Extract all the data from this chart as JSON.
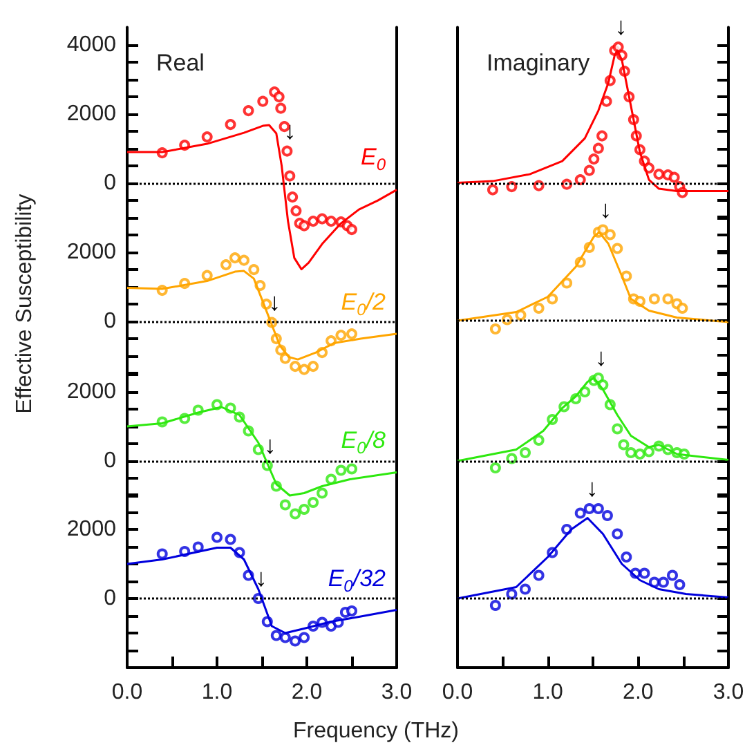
{
  "chart_data": [
    {
      "type": "scatter",
      "title": "Real",
      "grid": false,
      "legend": false,
      "marker": "circle",
      "tick_labels": "y",
      "xlim": [
        0,
        3
      ],
      "ylim": [
        -2500,
        4500
      ],
      "yticks": [
        {
          "value": -2500,
          "label": null
        },
        {
          "value": -2000,
          "label": null
        },
        {
          "value": -1500,
          "label": null
        },
        {
          "value": -1000,
          "label": null
        },
        {
          "value": -500,
          "label": null
        },
        0,
        {
          "value": 500,
          "label": null
        },
        {
          "value": 1000,
          "label": null
        },
        {
          "value": 1500,
          "label": null
        },
        2000,
        {
          "value": 2500,
          "label": null
        },
        {
          "value": 3000,
          "label": null
        },
        {
          "value": 3500,
          "label": null
        },
        4000
      ],
      "ref_lines": [
        {
          "axis": "y",
          "value": 0,
          "color": "#000000",
          "line_style": "dotted"
        }
      ],
      "annotations": [
        {
          "text": "↓",
          "x": 1.78,
          "y": 920
        }
      ],
      "series": [
        {
          "color": "#ff0000",
          "x": [
            0.39,
            0.64,
            0.89,
            1.15,
            1.35,
            1.51,
            1.64,
            1.69,
            1.71,
            1.75,
            1.78,
            1.81,
            1.84,
            1.88,
            1.92,
            1.97,
            2.07,
            2.17,
            2.27,
            2.38,
            2.45,
            2.5
          ],
          "values": [
            870,
            1090,
            1330,
            1690,
            2090,
            2360,
            2630,
            2490,
            2160,
            1630,
            920,
            200,
            -410,
            -810,
            -1170,
            -1240,
            -1110,
            -1040,
            -1110,
            -1130,
            -1240,
            -1350
          ]
        },
        {
          "type": "line",
          "marker": "none",
          "name": "E$_{0}$",
          "color": "#ff0000",
          "x": [
            0,
            0.39,
            0.89,
            1.3,
            1.51,
            1.58,
            1.66,
            1.72,
            1.79,
            1.86,
            1.94,
            2.02,
            2.17,
            2.38,
            2.58,
            2.79,
            3.0
          ],
          "values": [
            890,
            890,
            1130,
            1450,
            1650,
            1670,
            1430,
            490,
            -1110,
            -2170,
            -2500,
            -2310,
            -1770,
            -1170,
            -770,
            -510,
            -200
          ]
        }
      ]
    },
    {
      "type": "scatter",
      "title": "Imaginary",
      "grid": false,
      "legend": false,
      "marker": "circle",
      "tick_labels": false,
      "xlim": [
        0,
        3
      ],
      "ylim": [
        -2500,
        4500
      ],
      "yticks": [
        {
          "value": -2500,
          "label": null
        },
        {
          "value": -2000,
          "label": null
        },
        {
          "value": -1500,
          "label": null
        },
        {
          "value": -1000,
          "label": null
        },
        {
          "value": -500,
          "label": null
        },
        0,
        {
          "value": 500,
          "label": null
        },
        {
          "value": 1000,
          "label": null
        },
        {
          "value": 1500,
          "label": null
        },
        2000,
        {
          "value": 2500,
          "label": null
        },
        {
          "value": 3000,
          "label": null
        },
        {
          "value": 3500,
          "label": null
        },
        4000
      ],
      "ref_lines": [
        {
          "axis": "y",
          "value": 0,
          "color": "#000000",
          "line_style": "dotted"
        }
      ],
      "annotations": [
        {
          "text": "↓",
          "x": 1.78,
          "y": 3930
        }
      ],
      "series": [
        {
          "color": "#ff0000",
          "x": [
            0.39,
            0.6,
            0.9,
            1.21,
            1.36,
            1.46,
            1.51,
            1.56,
            1.6,
            1.65,
            1.69,
            1.74,
            1.78,
            1.82,
            1.85,
            1.9,
            1.95,
            1.98,
            2.02,
            2.07,
            2.12,
            2.23,
            2.33,
            2.4,
            2.46,
            2.49
          ],
          "values": [
            -200,
            -110,
            -80,
            -40,
            90,
            360,
            690,
            1000,
            1360,
            2360,
            2960,
            3830,
            3930,
            3690,
            3230,
            2490,
            1830,
            1360,
            960,
            630,
            430,
            250,
            230,
            160,
            -110,
            -280
          ]
        },
        {
          "type": "line",
          "marker": "none",
          "color": "#ff0000",
          "x": [
            0,
            0.39,
            0.8,
            1.16,
            1.41,
            1.56,
            1.67,
            1.74,
            1.77,
            1.82,
            1.92,
            2.02,
            2.12,
            2.23,
            2.43,
            3.0
          ],
          "values": [
            0,
            50,
            250,
            630,
            1290,
            2090,
            2890,
            3690,
            3830,
            3560,
            2230,
            890,
            90,
            -170,
            -240,
            -240
          ]
        }
      ]
    },
    {
      "type": "scatter",
      "ylabel": "Effective Susceptibility",
      "grid": false,
      "legend": false,
      "marker": "circle",
      "tick_labels": "y",
      "xlim": [
        0,
        3
      ],
      "ylim": [
        -2000,
        3000
      ],
      "yticks": [
        {
          "value": -1500,
          "label": null
        },
        {
          "value": -1000,
          "label": null
        },
        {
          "value": -500,
          "label": null
        },
        0,
        {
          "value": 500,
          "label": null
        },
        {
          "value": 1000,
          "label": null
        },
        {
          "value": 1500,
          "label": null
        },
        2000,
        {
          "value": 2500,
          "label": null
        },
        {
          "value": 3000,
          "label": null
        }
      ],
      "ref_lines": [
        {
          "axis": "y",
          "value": 0,
          "color": "#000000",
          "line_style": "dotted"
        }
      ],
      "annotations": [
        {
          "text": "↓",
          "x": 1.61,
          "y": -40
        }
      ],
      "series": [
        {
          "color": "#ffa500",
          "x": [
            0.39,
            0.64,
            0.89,
            1.1,
            1.2,
            1.3,
            1.41,
            1.48,
            1.55,
            1.61,
            1.66,
            1.71,
            1.76,
            1.87,
            1.97,
            2.07,
            2.17,
            2.27,
            2.38,
            2.5
          ],
          "values": [
            890,
            1090,
            1320,
            1630,
            1830,
            1760,
            1490,
            1030,
            490,
            -40,
            -510,
            -840,
            -1080,
            -1310,
            -1400,
            -1310,
            -910,
            -570,
            -410,
            -370
          ]
        },
        {
          "type": "line",
          "marker": "none",
          "name": "E$_{0}$/2",
          "color": "#ffa500",
          "x": [
            0,
            0.39,
            0.89,
            1.2,
            1.3,
            1.41,
            1.5,
            1.6,
            1.7,
            1.8,
            1.9,
            2.1,
            2.3,
            2.6,
            3.0
          ],
          "values": [
            960,
            930,
            1160,
            1430,
            1450,
            1230,
            630,
            -40,
            -710,
            -1040,
            -1110,
            -910,
            -640,
            -510,
            -370
          ]
        }
      ]
    },
    {
      "type": "scatter",
      "grid": false,
      "legend": false,
      "marker": "circle",
      "tick_labels": false,
      "xlim": [
        0,
        3
      ],
      "ylim": [
        -2000,
        3000
      ],
      "yticks": [
        {
          "value": -1500,
          "label": null
        },
        {
          "value": -1000,
          "label": null
        },
        {
          "value": -500,
          "label": null
        },
        0,
        {
          "value": 500,
          "label": null
        },
        {
          "value": 1000,
          "label": null
        },
        {
          "value": 1500,
          "label": null
        },
        2000,
        {
          "value": 2500,
          "label": null
        },
        {
          "value": 3000,
          "label": null
        }
      ],
      "ref_lines": [
        {
          "axis": "y",
          "value": 0,
          "color": "#000000",
          "line_style": "dotted"
        }
      ],
      "annotations": [
        {
          "text": "↓",
          "x": 1.61,
          "y": 2630
        }
      ],
      "series": [
        {
          "color": "#ffa500",
          "x": [
            0.42,
            0.55,
            0.7,
            0.9,
            1.05,
            1.21,
            1.36,
            1.46,
            1.56,
            1.61,
            1.69,
            1.77,
            1.87,
            1.95,
            2.02,
            2.18,
            2.33,
            2.43,
            2.49
          ],
          "values": [
            -240,
            30,
            160,
            360,
            630,
            1090,
            1690,
            2120,
            2560,
            2630,
            2490,
            2090,
            1290,
            630,
            560,
            630,
            630,
            490,
            360
          ]
        },
        {
          "type": "line",
          "marker": "none",
          "color": "#ffa500",
          "x": [
            0,
            0.65,
            1.0,
            1.31,
            1.51,
            1.57,
            1.67,
            1.82,
            1.92,
            2.12,
            2.43,
            3.0
          ],
          "values": [
            0,
            250,
            690,
            1560,
            2430,
            2560,
            2230,
            1290,
            630,
            290,
            90,
            -40
          ]
        }
      ]
    },
    {
      "type": "scatter",
      "grid": false,
      "legend": false,
      "marker": "circle",
      "tick_labels": "y",
      "xlim": [
        0,
        3
      ],
      "ylim": [
        -2000,
        2500
      ],
      "yticks": [
        {
          "value": -1500,
          "label": null
        },
        {
          "value": -1000,
          "label": null
        },
        {
          "value": -500,
          "label": null
        },
        0,
        {
          "value": 500,
          "label": null
        },
        {
          "value": 1000,
          "label": null
        },
        {
          "value": 1500,
          "label": null
        },
        2000,
        {
          "value": 2500,
          "label": null
        }
      ],
      "ref_lines": [
        {
          "axis": "y",
          "value": 0,
          "color": "#000000",
          "line_style": "dotted"
        }
      ],
      "annotations": [
        {
          "text": "↓",
          "x": 1.56,
          "y": -130
        }
      ],
      "series": [
        {
          "color": "#2ee80f",
          "x": [
            0.39,
            0.64,
            0.79,
            1.0,
            1.15,
            1.25,
            1.35,
            1.46,
            1.56,
            1.66,
            1.76,
            1.87,
            1.97,
            2.07,
            2.17,
            2.27,
            2.38,
            2.5
          ],
          "values": [
            1130,
            1230,
            1470,
            1630,
            1530,
            1270,
            870,
            330,
            -130,
            -730,
            -1270,
            -1530,
            -1400,
            -1200,
            -930,
            -530,
            -270,
            -230
          ]
        },
        {
          "type": "line",
          "marker": "none",
          "name": "E$_{0}$/8",
          "color": "#2ee80f",
          "x": [
            0,
            0.39,
            0.79,
            1.05,
            1.25,
            1.46,
            1.66,
            1.81,
            1.97,
            2.17,
            2.48,
            3.0
          ],
          "values": [
            1000,
            1090,
            1400,
            1560,
            1330,
            530,
            -670,
            -1000,
            -930,
            -730,
            -530,
            -330
          ]
        }
      ]
    },
    {
      "type": "scatter",
      "grid": false,
      "legend": false,
      "marker": "circle",
      "tick_labels": false,
      "xlim": [
        0,
        3
      ],
      "ylim": [
        -2000,
        2500
      ],
      "yticks": [
        {
          "value": -1500,
          "label": null
        },
        {
          "value": -1000,
          "label": null
        },
        {
          "value": -500,
          "label": null
        },
        0,
        {
          "value": 500,
          "label": null
        },
        {
          "value": 1000,
          "label": null
        },
        {
          "value": 1500,
          "label": null
        },
        2000,
        {
          "value": 2500,
          "label": null
        }
      ],
      "ref_lines": [
        {
          "axis": "y",
          "value": 0,
          "color": "#000000",
          "line_style": "dotted"
        }
      ],
      "annotations": [
        {
          "text": "↓",
          "x": 1.56,
          "y": 2400
        }
      ],
      "series": [
        {
          "color": "#2ee80f",
          "x": [
            0.42,
            0.6,
            0.75,
            0.9,
            1.05,
            1.18,
            1.31,
            1.41,
            1.51,
            1.56,
            1.61,
            1.69,
            1.77,
            1.84,
            1.92,
            2.02,
            2.12,
            2.23,
            2.33,
            2.43,
            2.51
          ],
          "values": [
            -200,
            70,
            240,
            600,
            1200,
            1570,
            1800,
            2000,
            2330,
            2400,
            2200,
            1630,
            930,
            470,
            240,
            200,
            270,
            430,
            330,
            240,
            200
          ]
        },
        {
          "type": "line",
          "marker": "none",
          "color": "#2ee80f",
          "x": [
            0,
            0.65,
            0.95,
            1.16,
            1.31,
            1.44,
            1.51,
            1.61,
            1.77,
            1.92,
            2.12,
            2.23,
            2.43,
            3.0
          ],
          "values": [
            0,
            330,
            870,
            1530,
            1870,
            2290,
            2400,
            2070,
            1330,
            730,
            400,
            470,
            200,
            30
          ]
        }
      ]
    },
    {
      "type": "scatter",
      "xlabel": "Frequency (THz)",
      "grid": false,
      "legend": false,
      "marker": "circle",
      "xlim": [
        0,
        3
      ],
      "xticks": [
        {
          "value": 0,
          "label": "0.0"
        },
        {
          "value": 0.5,
          "label": null
        },
        {
          "value": 1,
          "label": "1.0"
        },
        {
          "value": 1.5,
          "label": null
        },
        {
          "value": 2,
          "label": "2.0"
        },
        {
          "value": 2.5,
          "label": null
        },
        {
          "value": 3,
          "label": "3.0"
        }
      ],
      "ylim": [
        -2000,
        3000
      ],
      "yticks": [
        {
          "value": -1500,
          "label": null
        },
        {
          "value": -1000,
          "label": null
        },
        {
          "value": -500,
          "label": null
        },
        0,
        {
          "value": 500,
          "label": null
        },
        {
          "value": 1000,
          "label": null
        },
        {
          "value": 1500,
          "label": null
        },
        2000,
        {
          "value": 2500,
          "label": null
        },
        {
          "value": 3000,
          "label": null
        }
      ],
      "ref_lines": [
        {
          "axis": "y",
          "value": 0,
          "color": "#000000",
          "line_style": "dotted"
        }
      ],
      "annotations": [
        {
          "text": "↓",
          "x": 1.46,
          "y": 0
        }
      ],
      "series": [
        {
          "color": "#0000dd",
          "x": [
            0.39,
            0.64,
            0.79,
            1.0,
            1.15,
            1.25,
            1.35,
            1.46,
            1.56,
            1.66,
            1.76,
            1.87,
            1.97,
            2.07,
            2.17,
            2.27,
            2.35,
            2.43,
            2.5
          ],
          "values": [
            1290,
            1360,
            1490,
            1770,
            1710,
            1330,
            670,
            0,
            -670,
            -1070,
            -1130,
            -1230,
            -1130,
            -800,
            -690,
            -800,
            -690,
            -400,
            -360
          ]
        },
        {
          "type": "line",
          "marker": "none",
          "name": "E$_{0}$/32",
          "color": "#0000dd",
          "x": [
            0,
            0.39,
            1.0,
            1.15,
            1.3,
            1.46,
            1.61,
            1.76,
            1.97,
            2.27,
            2.58,
            3.0
          ],
          "values": [
            1000,
            1130,
            1470,
            1470,
            1130,
            270,
            -800,
            -1000,
            -870,
            -670,
            -530,
            -330
          ]
        }
      ]
    },
    {
      "type": "scatter",
      "grid": false,
      "legend": false,
      "marker": "circle",
      "tick_labels": "x",
      "xlim": [
        0,
        3
      ],
      "xticks": [
        {
          "value": 0,
          "label": "0.0"
        },
        {
          "value": 0.5,
          "label": null
        },
        {
          "value": 1,
          "label": "1.0"
        },
        {
          "value": 1.5,
          "label": null
        },
        {
          "value": 2,
          "label": "2.0"
        },
        {
          "value": 2.5,
          "label": null
        },
        {
          "value": 3,
          "label": "3.0"
        }
      ],
      "ylim": [
        -2000,
        3000
      ],
      "yticks": [
        {
          "value": -1500,
          "label": null
        },
        {
          "value": -1000,
          "label": null
        },
        {
          "value": -500,
          "label": null
        },
        0,
        {
          "value": 500,
          "label": null
        },
        {
          "value": 1000,
          "label": null
        },
        {
          "value": 1500,
          "label": null
        },
        2000,
        {
          "value": 2500,
          "label": null
        },
        {
          "value": 3000,
          "label": null
        }
      ],
      "ref_lines": [
        {
          "axis": "y",
          "value": 0,
          "color": "#000000",
          "line_style": "dotted"
        }
      ],
      "annotations": [
        {
          "text": "↓",
          "x": 1.46,
          "y": 2600
        }
      ],
      "series": [
        {
          "color": "#0000dd",
          "x": [
            0.42,
            0.6,
            0.75,
            0.9,
            1.05,
            1.21,
            1.36,
            1.46,
            1.56,
            1.66,
            1.77,
            1.87,
            1.97,
            2.07,
            2.18,
            2.28,
            2.38,
            2.46
          ],
          "values": [
            -200,
            130,
            270,
            670,
            1330,
            2000,
            2470,
            2600,
            2600,
            2400,
            1870,
            1200,
            730,
            730,
            470,
            470,
            670,
            400
          ]
        },
        {
          "type": "line",
          "marker": "none",
          "color": "#0000dd",
          "x": [
            0,
            0.65,
            1.0,
            1.26,
            1.44,
            1.61,
            1.82,
            2.02,
            2.23,
            2.53,
            3.0
          ],
          "values": [
            0,
            330,
            1200,
            2000,
            2330,
            1870,
            1000,
            530,
            270,
            130,
            30
          ]
        }
      ]
    }
  ]
}
